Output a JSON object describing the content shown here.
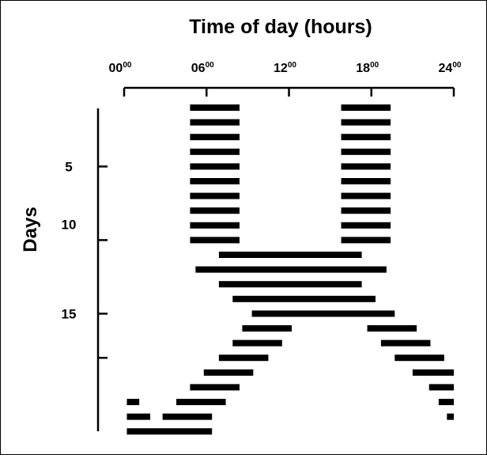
{
  "chart_data": {
    "type": "bar",
    "title": "Time of day (hours)",
    "ylabel": "Days",
    "x_ticks": [
      {
        "hour": 0,
        "base": "00",
        "sup": "00"
      },
      {
        "hour": 6,
        "base": "06",
        "sup": "00"
      },
      {
        "hour": 12,
        "base": "12",
        "sup": "00"
      },
      {
        "hour": 18,
        "base": "18",
        "sup": "00"
      },
      {
        "hour": 24,
        "base": "24",
        "sup": "00"
      }
    ],
    "xlim": [
      0,
      24
    ],
    "y_ticks": [
      {
        "day": 5,
        "label": "5"
      },
      {
        "day": 10,
        "label": "10"
      },
      {
        "day": 15,
        "label": "15"
      },
      {
        "day": 18,
        "label": ""
      }
    ],
    "days": [
      {
        "day": 1,
        "bouts": [
          [
            4.8,
            8.4
          ],
          [
            15.8,
            19.4
          ]
        ]
      },
      {
        "day": 2,
        "bouts": [
          [
            4.8,
            8.4
          ],
          [
            15.8,
            19.4
          ]
        ]
      },
      {
        "day": 3,
        "bouts": [
          [
            4.8,
            8.4
          ],
          [
            15.8,
            19.4
          ]
        ]
      },
      {
        "day": 4,
        "bouts": [
          [
            4.8,
            8.4
          ],
          [
            15.8,
            19.4
          ]
        ]
      },
      {
        "day": 5,
        "bouts": [
          [
            4.8,
            8.4
          ],
          [
            15.8,
            19.4
          ]
        ]
      },
      {
        "day": 6,
        "bouts": [
          [
            4.8,
            8.4
          ],
          [
            15.8,
            19.4
          ]
        ]
      },
      {
        "day": 7,
        "bouts": [
          [
            4.8,
            8.4
          ],
          [
            15.8,
            19.4
          ]
        ]
      },
      {
        "day": 8,
        "bouts": [
          [
            4.8,
            8.4
          ],
          [
            15.8,
            19.4
          ]
        ]
      },
      {
        "day": 9,
        "bouts": [
          [
            4.8,
            8.4
          ],
          [
            15.8,
            19.4
          ]
        ]
      },
      {
        "day": 10,
        "bouts": [
          [
            4.8,
            8.4
          ],
          [
            15.8,
            19.4
          ]
        ]
      },
      {
        "day": 11,
        "bouts": [
          [
            6.9,
            17.3
          ]
        ]
      },
      {
        "day": 12,
        "bouts": [
          [
            5.2,
            19.1
          ]
        ]
      },
      {
        "day": 13,
        "bouts": [
          [
            6.9,
            17.3
          ]
        ]
      },
      {
        "day": 14,
        "bouts": [
          [
            7.9,
            18.3
          ]
        ]
      },
      {
        "day": 15,
        "bouts": [
          [
            9.3,
            19.7
          ]
        ]
      },
      {
        "day": 16,
        "bouts": [
          [
            8.6,
            12.2
          ],
          [
            17.7,
            21.3
          ]
        ]
      },
      {
        "day": 17,
        "bouts": [
          [
            7.9,
            11.5
          ],
          [
            18.7,
            22.3
          ]
        ]
      },
      {
        "day": 18,
        "bouts": [
          [
            6.9,
            10.5
          ],
          [
            19.7,
            23.3
          ]
        ]
      },
      {
        "day": 19,
        "bouts": [
          [
            5.8,
            9.4
          ],
          [
            21.0,
            24.0
          ]
        ]
      },
      {
        "day": 20,
        "bouts": [
          [
            4.8,
            8.4
          ],
          [
            22.2,
            24.0
          ]
        ]
      },
      {
        "day": 21,
        "bouts": [
          [
            0.2,
            1.1
          ],
          [
            3.8,
            7.4
          ],
          [
            22.9,
            24.0
          ]
        ]
      },
      {
        "day": 22,
        "bouts": [
          [
            0.2,
            1.9
          ],
          [
            2.8,
            6.4
          ],
          [
            23.5,
            24.0
          ]
        ]
      },
      {
        "day": 23,
        "bouts": [
          [
            0.2,
            6.4
          ]
        ]
      }
    ]
  }
}
